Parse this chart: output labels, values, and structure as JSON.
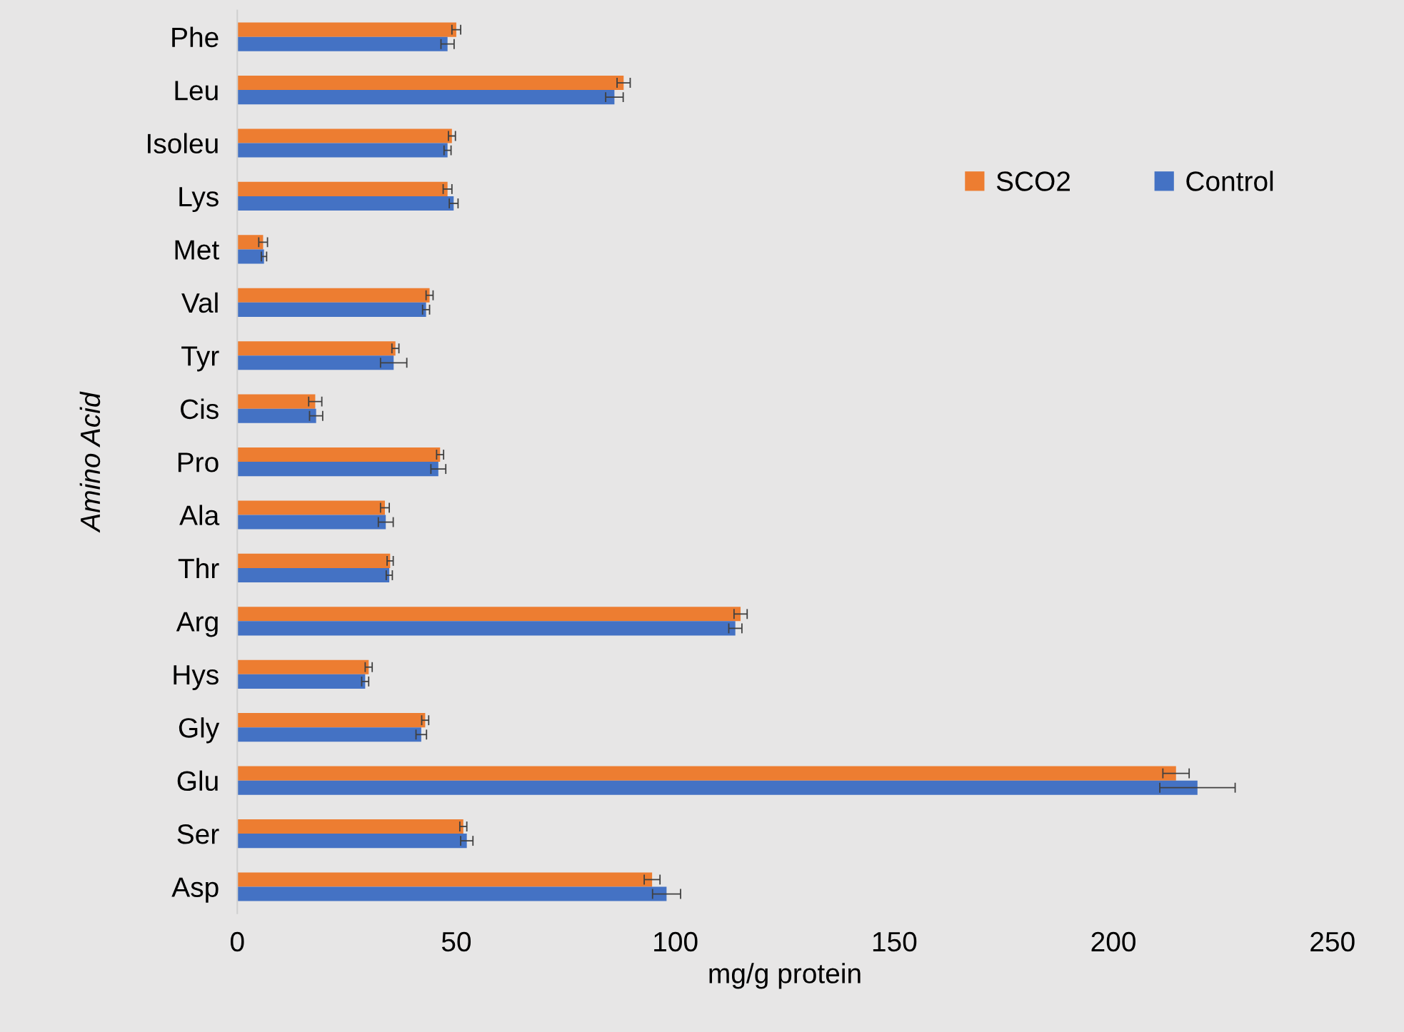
{
  "chart_data": {
    "type": "bar",
    "orientation": "horizontal",
    "xlabel": "mg/g protein",
    "ylabel": "Amino Acid",
    "categories": [
      "Phe",
      "Leu",
      "Isoleu",
      "Lys",
      "Met",
      "Val",
      "Tyr",
      "Cis",
      "Pro",
      "Ala",
      "Thr",
      "Arg",
      "Hys",
      "Gly",
      "Glu",
      "Ser",
      "Asp"
    ],
    "series": [
      {
        "name": "SCO2",
        "color": "#ed7d31",
        "values": [
          50.0,
          88.2,
          49.0,
          48.0,
          5.9,
          43.9,
          36.1,
          17.8,
          46.3,
          33.7,
          34.9,
          114.9,
          30.0,
          42.9,
          214.3,
          51.6,
          94.7
        ],
        "errors": [
          1.0,
          1.5,
          0.8,
          1.0,
          1.0,
          0.8,
          0.8,
          1.5,
          0.8,
          1.0,
          0.7,
          1.5,
          0.8,
          0.8,
          3.0,
          0.8,
          1.8
        ]
      },
      {
        "name": "Control",
        "color": "#4472c4",
        "values": [
          48.0,
          86.1,
          48.0,
          49.4,
          6.1,
          43.1,
          35.7,
          18.0,
          45.9,
          33.9,
          34.7,
          113.7,
          29.2,
          42.0,
          219.2,
          52.4,
          98.0
        ],
        "errors": [
          1.5,
          2.0,
          0.8,
          1.0,
          0.6,
          0.8,
          3.0,
          1.5,
          1.7,
          1.7,
          0.7,
          1.5,
          0.8,
          1.2,
          8.6,
          1.4,
          3.2
        ]
      }
    ],
    "xlim": [
      0,
      250
    ],
    "xticks": [
      0,
      50,
      100,
      150,
      200,
      250
    ],
    "grid": false,
    "legend": "top right"
  }
}
